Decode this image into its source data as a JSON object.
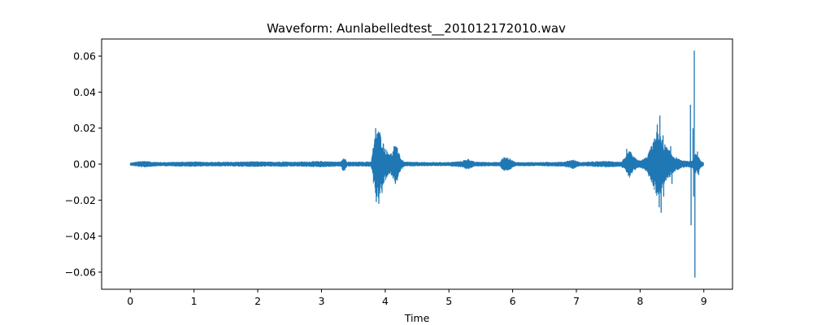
{
  "chart_data": {
    "type": "line",
    "title": "Waveform: Aunlabelledtest__201012172010.wav",
    "xlabel": "Time",
    "ylabel": "",
    "xlim": [
      -0.45,
      9.45
    ],
    "ylim": [
      -0.0695,
      0.0695
    ],
    "grid": false,
    "legend": "none",
    "x_ticks": [
      0,
      1,
      2,
      3,
      4,
      5,
      6,
      7,
      8,
      9
    ],
    "x_tick_labels": [
      "0",
      "1",
      "2",
      "3",
      "4",
      "5",
      "6",
      "7",
      "8",
      "9"
    ],
    "y_ticks": [
      0.06,
      0.04,
      0.02,
      0.0,
      -0.02,
      -0.04,
      -0.06
    ],
    "y_tick_labels": [
      "0.06",
      "0.04",
      "0.02",
      "0.00",
      "−0.02",
      "−0.04",
      "−0.06"
    ],
    "series": [
      {
        "color": "#1f77b4",
        "duration": 9.0,
        "envelope": [
          [
            0.0,
            0.0006
          ],
          [
            0.1,
            0.0012
          ],
          [
            0.2,
            0.0018
          ],
          [
            0.35,
            0.0012
          ],
          [
            0.5,
            0.001
          ],
          [
            0.8,
            0.0012
          ],
          [
            1.0,
            0.0013
          ],
          [
            1.3,
            0.0011
          ],
          [
            1.6,
            0.0012
          ],
          [
            1.8,
            0.0013
          ],
          [
            2.0,
            0.0014
          ],
          [
            2.2,
            0.0012
          ],
          [
            2.4,
            0.0014
          ],
          [
            2.6,
            0.0012
          ],
          [
            2.8,
            0.0014
          ],
          [
            3.0,
            0.0016
          ],
          [
            3.2,
            0.0013
          ],
          [
            3.3,
            0.0012
          ],
          [
            3.35,
            0.0045
          ],
          [
            3.4,
            0.0012
          ],
          [
            3.6,
            0.0012
          ],
          [
            3.78,
            0.0014
          ],
          [
            3.82,
            0.012
          ],
          [
            3.87,
            0.02
          ],
          [
            3.92,
            0.018
          ],
          [
            3.97,
            0.012
          ],
          [
            4.02,
            0.008
          ],
          [
            4.1,
            0.006
          ],
          [
            4.15,
            0.01
          ],
          [
            4.2,
            0.009
          ],
          [
            4.25,
            0.003
          ],
          [
            4.3,
            0.0012
          ],
          [
            4.6,
            0.001
          ],
          [
            5.0,
            0.001
          ],
          [
            5.2,
            0.0016
          ],
          [
            5.3,
            0.003
          ],
          [
            5.4,
            0.0012
          ],
          [
            5.8,
            0.001
          ],
          [
            5.85,
            0.004
          ],
          [
            5.95,
            0.0032
          ],
          [
            6.05,
            0.001
          ],
          [
            6.4,
            0.001
          ],
          [
            6.8,
            0.0012
          ],
          [
            6.95,
            0.0025
          ],
          [
            7.05,
            0.001
          ],
          [
            7.3,
            0.0014
          ],
          [
            7.5,
            0.0016
          ],
          [
            7.7,
            0.0012
          ],
          [
            7.78,
            0.004
          ],
          [
            7.83,
            0.008
          ],
          [
            7.9,
            0.004
          ],
          [
            8.0,
            0.0018
          ],
          [
            8.1,
            0.004
          ],
          [
            8.2,
            0.012
          ],
          [
            8.28,
            0.02
          ],
          [
            8.35,
            0.013
          ],
          [
            8.45,
            0.008
          ],
          [
            8.55,
            0.004
          ],
          [
            8.65,
            0.002
          ],
          [
            8.75,
            0.0016
          ],
          [
            8.82,
            0.002
          ],
          [
            8.86,
            0.006
          ],
          [
            8.91,
            0.005
          ],
          [
            8.95,
            0.002
          ],
          [
            9.0,
            0.0008
          ]
        ],
        "spikes": [
          [
            3.85,
            0.02
          ],
          [
            3.86,
            -0.021
          ],
          [
            3.88,
            0.017
          ],
          [
            3.9,
            -0.022
          ],
          [
            3.93,
            0.014
          ],
          [
            3.95,
            -0.016
          ],
          [
            4.14,
            0.01
          ],
          [
            4.16,
            -0.011
          ],
          [
            4.19,
            0.009
          ],
          [
            7.79,
            0.0085
          ],
          [
            7.82,
            -0.0055
          ],
          [
            8.22,
            0.0075
          ],
          [
            8.27,
            0.022
          ],
          [
            8.3,
            -0.024
          ],
          [
            8.31,
            0.027
          ],
          [
            8.33,
            -0.027
          ],
          [
            8.36,
            0.016
          ],
          [
            8.37,
            -0.018
          ],
          [
            8.48,
            0.01
          ],
          [
            8.5,
            -0.011
          ],
          [
            8.79,
            0.033
          ],
          [
            8.8,
            -0.034
          ],
          [
            8.83,
            0.02
          ],
          [
            8.84,
            -0.018
          ],
          [
            8.85,
            0.063
          ],
          [
            8.86,
            -0.063
          ],
          [
            8.9,
            0.007
          ],
          [
            8.92,
            -0.006
          ]
        ]
      }
    ]
  }
}
